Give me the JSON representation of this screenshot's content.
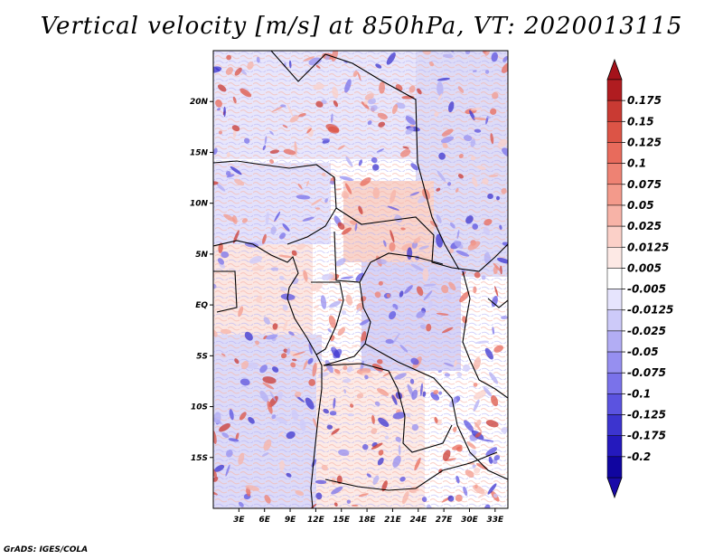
{
  "title": "Vertical velocity [m/s] at 850hPa, VT: 2020013115",
  "footer": "GrADS: IGES/COLA",
  "map": {
    "lon_range": [
      0,
      34.5
    ],
    "lat_range": [
      -20,
      25
    ],
    "lon_ticks": [
      "3E",
      "6E",
      "9E",
      "12E",
      "15E",
      "18E",
      "21E",
      "24E",
      "27E",
      "30E",
      "33E"
    ],
    "lon_tick_values": [
      3,
      6,
      9,
      12,
      15,
      18,
      21,
      24,
      27,
      30,
      33
    ],
    "lat_ticks": [
      "20N",
      "15N",
      "10N",
      "5N",
      "EQ",
      "5S",
      "10S",
      "15S"
    ],
    "lat_tick_values": [
      20,
      15,
      10,
      5,
      0,
      -5,
      -10,
      -15
    ],
    "field": "vertical velocity",
    "units": "m/s",
    "level": "850hPa"
  },
  "colorbar": {
    "labels": [
      "0.175",
      "0.15",
      "0.125",
      "0.1",
      "0.075",
      "0.05",
      "0.025",
      "0.0125",
      "0.005",
      "-0.005",
      "-0.0125",
      "-0.025",
      "-0.05",
      "-0.075",
      "-0.1",
      "-0.125",
      "-0.175",
      "-0.2"
    ],
    "colors": [
      "#b01c20",
      "#c93a33",
      "#dc5446",
      "#e86b5c",
      "#ee8273",
      "#f39a8b",
      "#f7b3a7",
      "#fbd0c8",
      "#fde9e5",
      "#ffffff",
      "#e6e4fd",
      "#cdcaf9",
      "#b2adf4",
      "#968ff0",
      "#7a72ea",
      "#5b53e0",
      "#3c34cf",
      "#2419bd",
      "#1005a0"
    ],
    "top_arrow_color": "#a4121b",
    "bottom_arrow_color": "#1a0aa8"
  }
}
